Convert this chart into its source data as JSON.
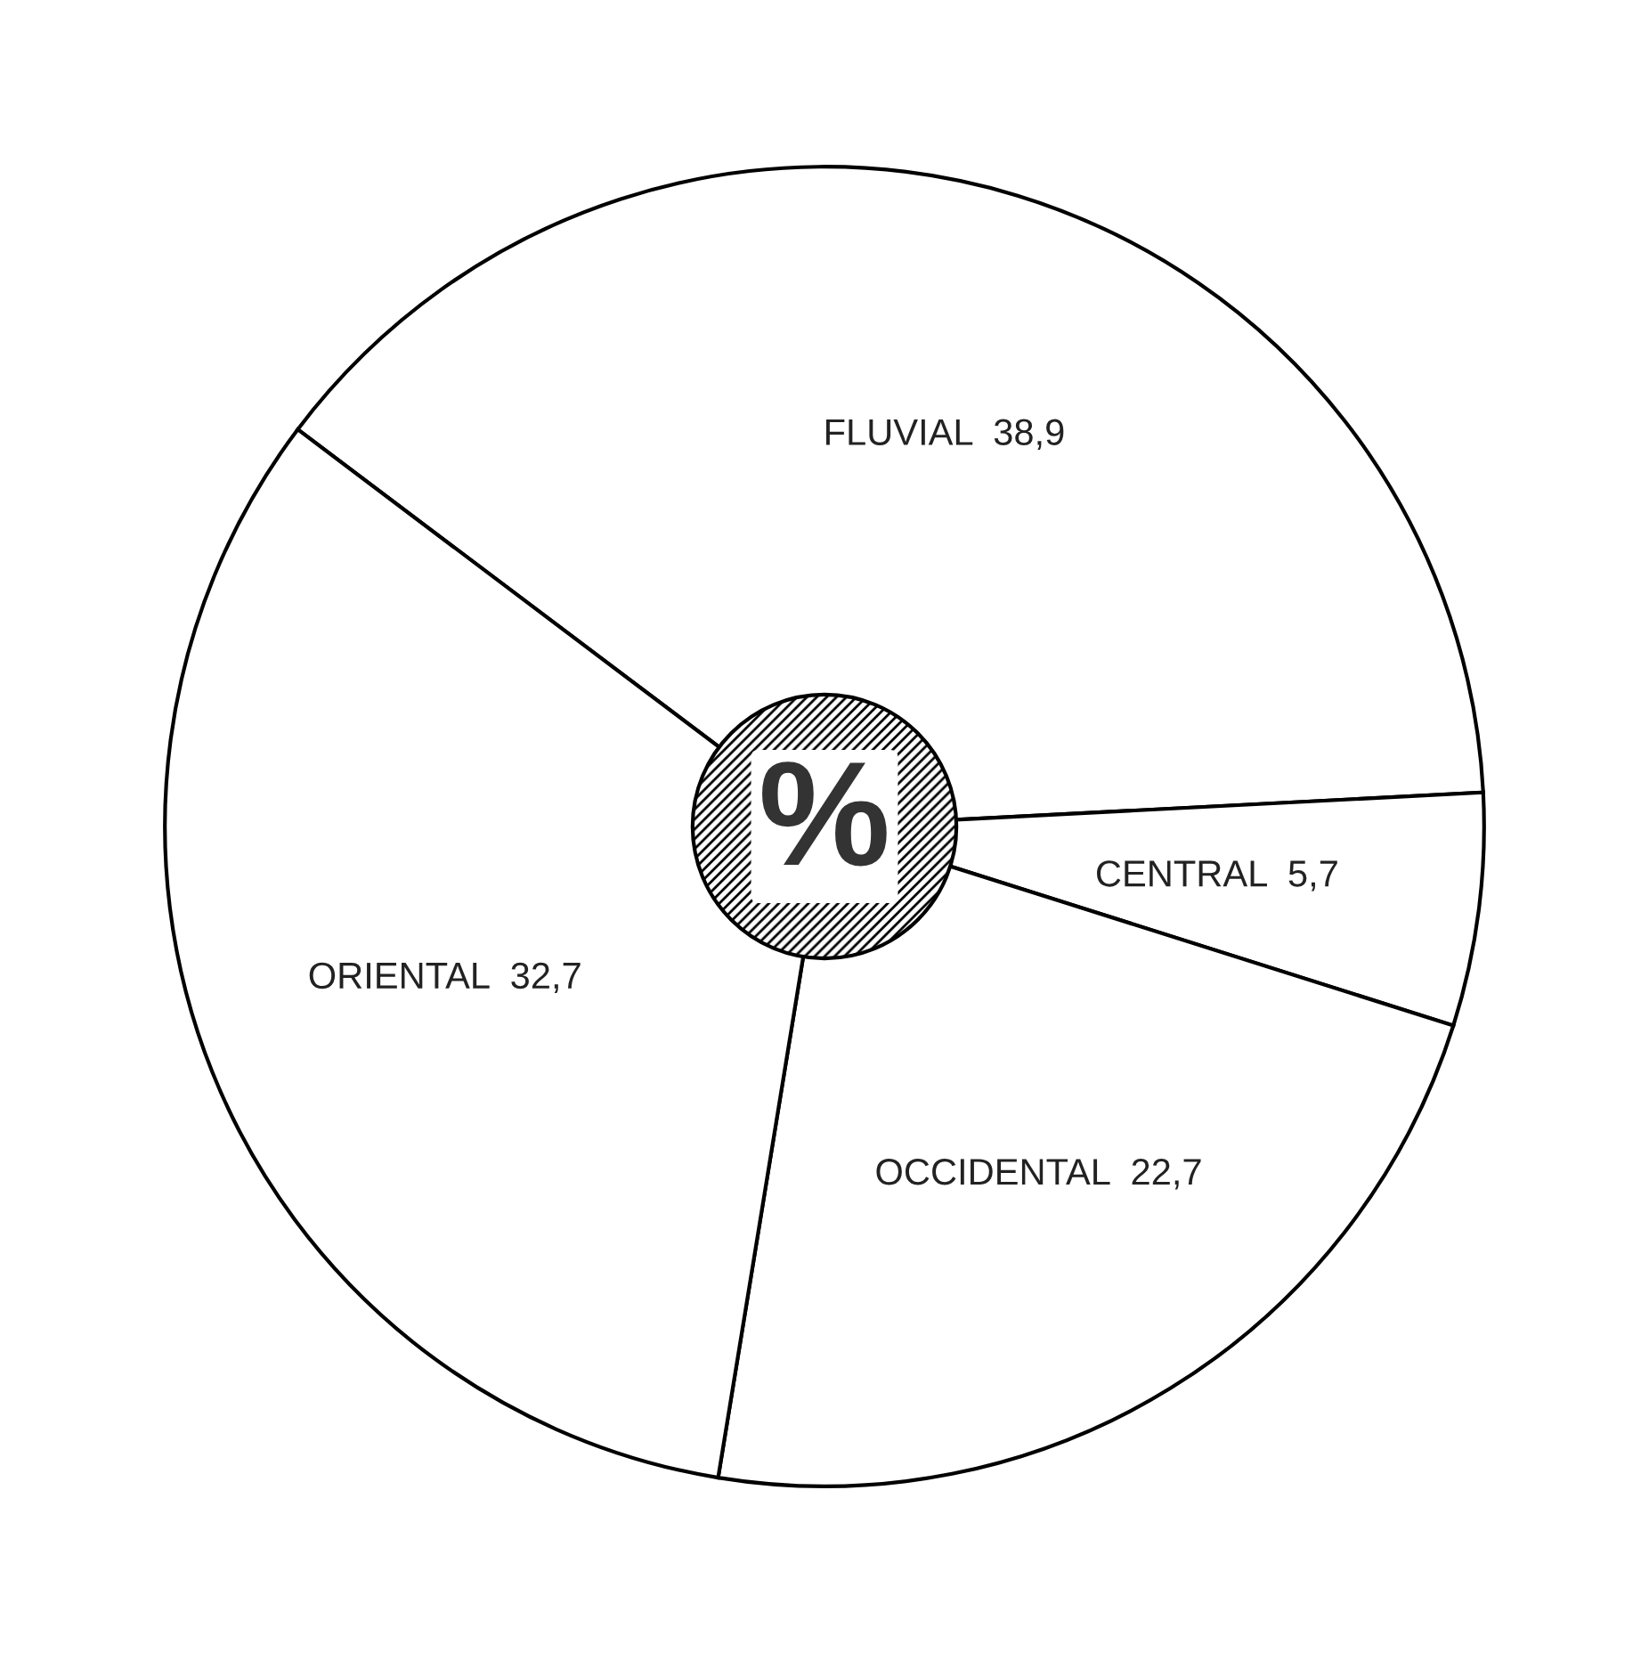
{
  "chart_data": {
    "type": "pie",
    "categories": [
      "FLUVIAL",
      "CENTRAL",
      "OCCIDENTAL",
      "ORIENTAL"
    ],
    "values": [
      38.9,
      5.7,
      22.7,
      32.7
    ],
    "value_labels": [
      "38,9",
      "5,7",
      "22,7",
      "32,7"
    ],
    "colors": [
      "#ffffff",
      "#ffffff",
      "#ffffff",
      "#ffffff"
    ],
    "annotations": [
      "%"
    ]
  }
}
